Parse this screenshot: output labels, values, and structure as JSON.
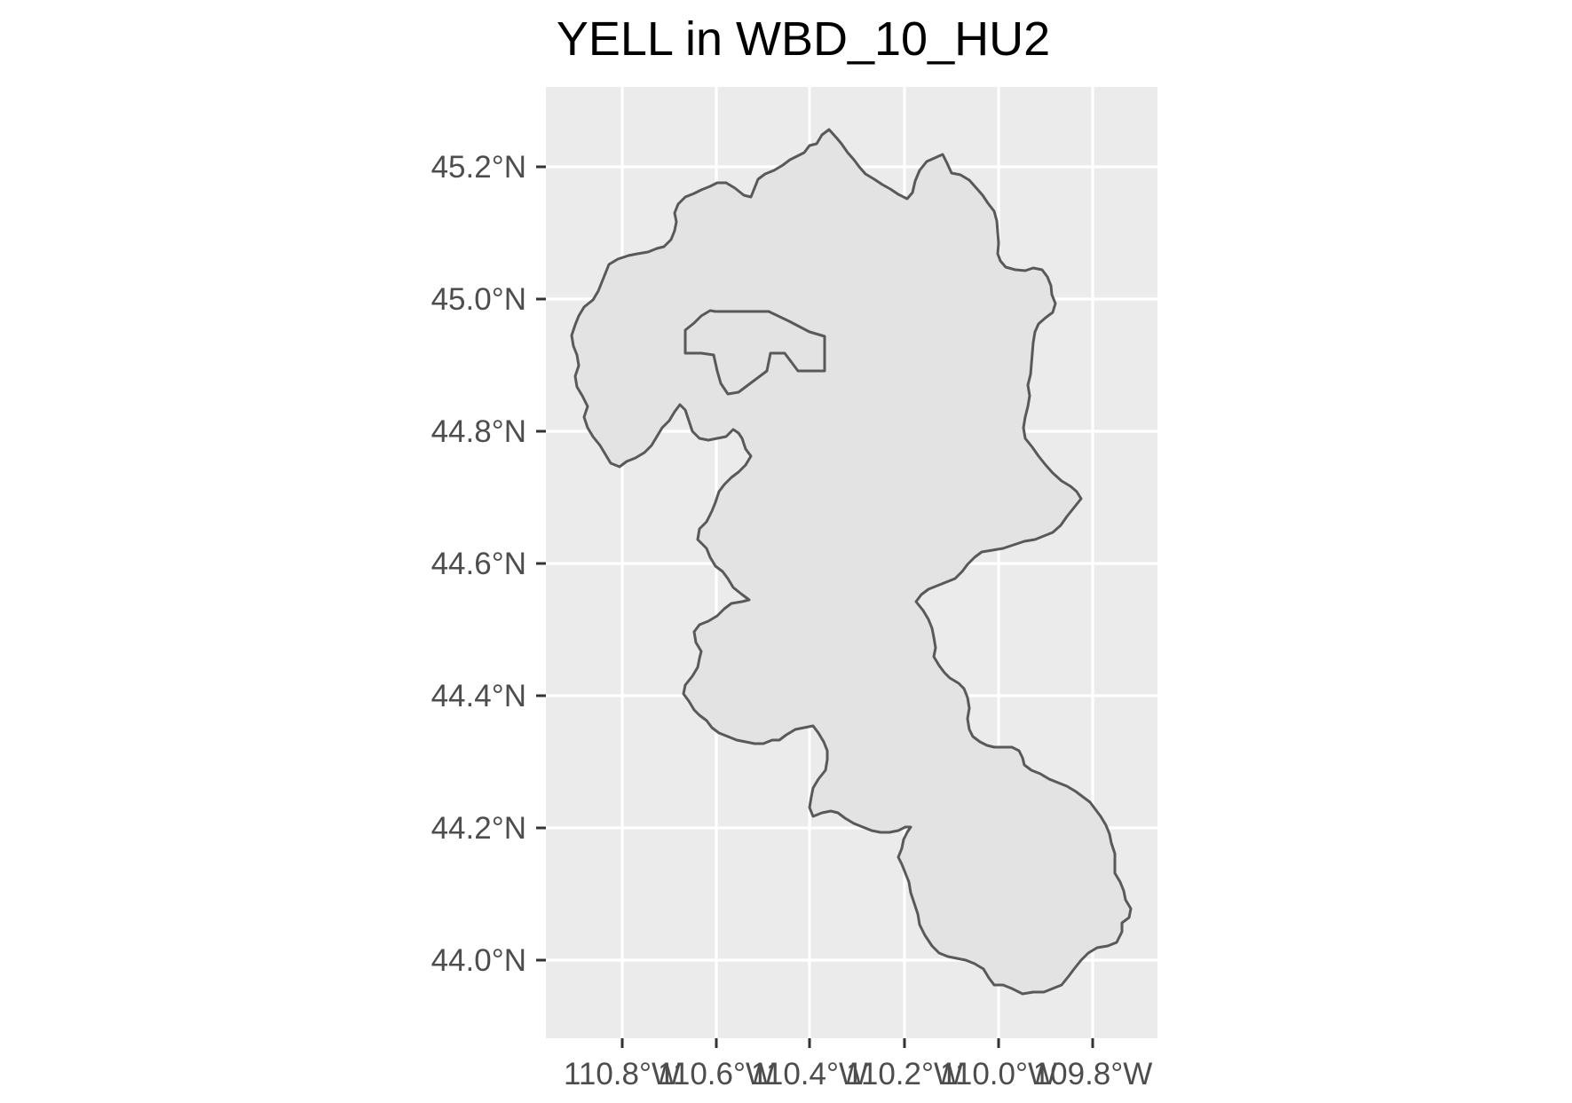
{
  "map": {
    "title": "YELL in WBD_10_HU2",
    "lat_labels": [
      "45.2°N",
      "45.0°N",
      "44.8°N",
      "44.6°N",
      "44.4°N",
      "44.2°N",
      "44.0°N"
    ],
    "lon_labels": [
      "110.8°W",
      "110.6°W",
      "110.4°W",
      "110.2°W",
      "110.0°W",
      "109.8°W"
    ],
    "lat_values": [
      45.2,
      45.0,
      44.8,
      44.6,
      44.4,
      44.2,
      44.0
    ],
    "lon_values": [
      -110.8,
      -110.6,
      -110.4,
      -110.2,
      -110.0,
      -109.8
    ],
    "panel_color": "#ebebeb",
    "grid_color": "#ffffff",
    "feature_fill": "#e3e3e3",
    "feature_stroke": "#595959"
  }
}
